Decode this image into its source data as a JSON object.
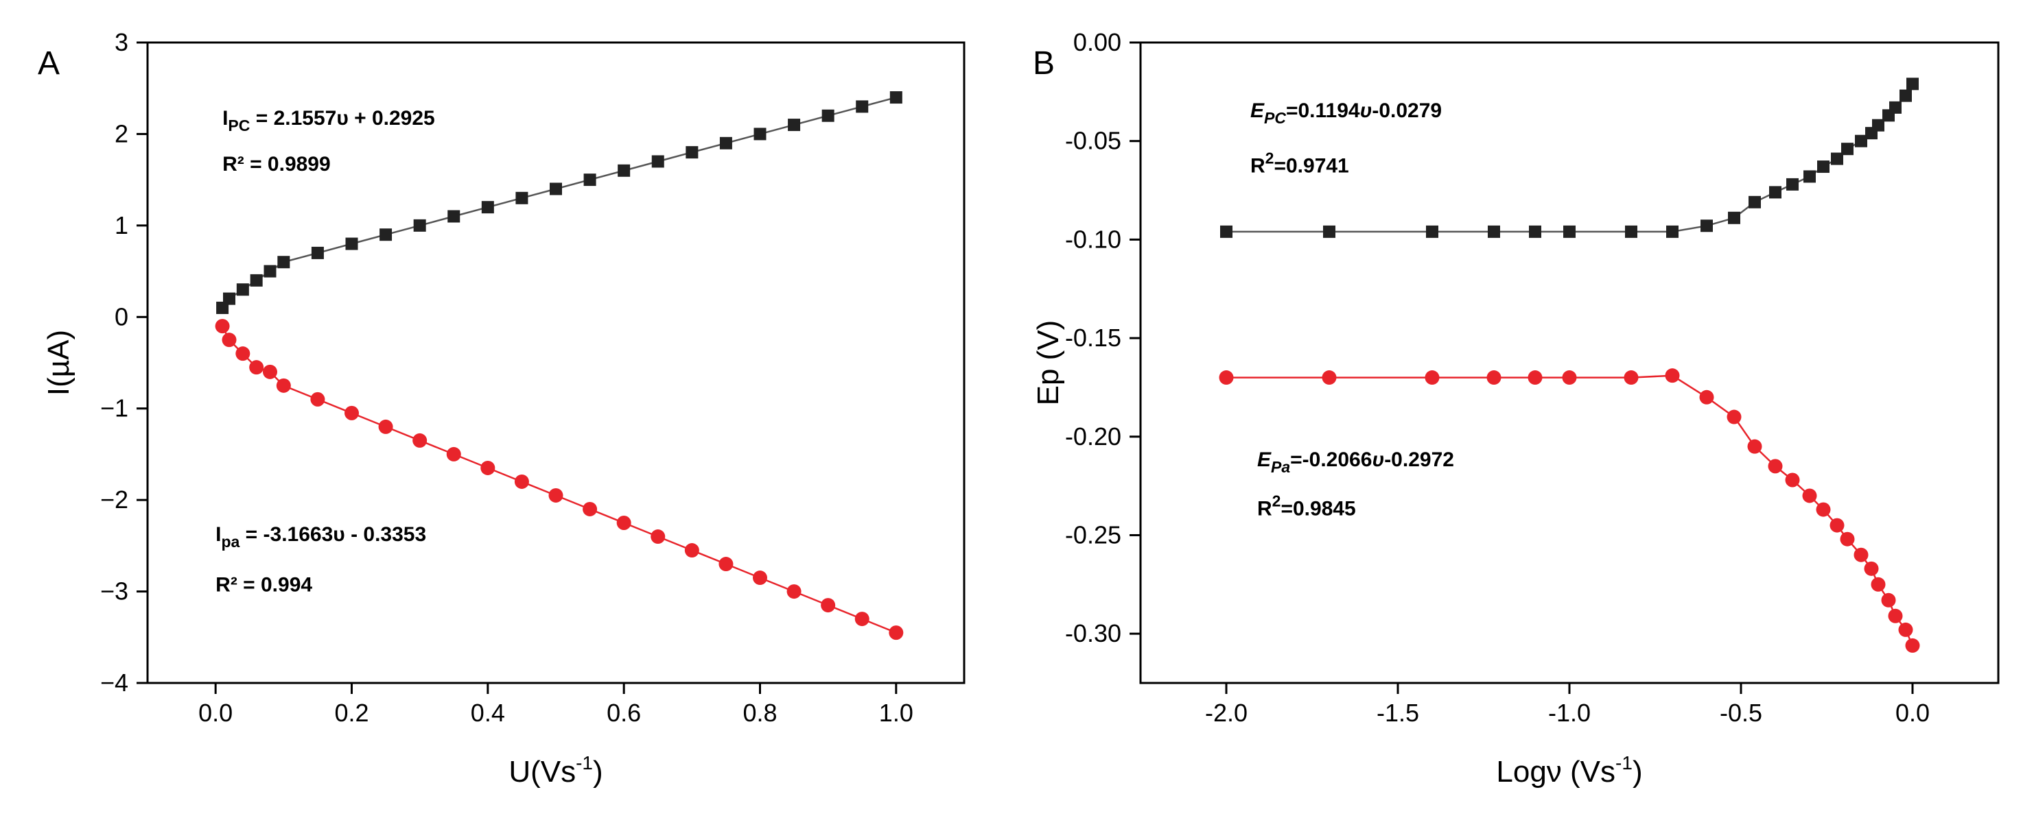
{
  "chart_data": [
    {
      "type": "scatter",
      "panel_label": "A",
      "title": "",
      "xlabel": {
        "main": "U(Vs",
        "sup": "-1",
        "end": ")"
      },
      "ylabel": "I(µA)",
      "xlim": [
        -0.1,
        1.1
      ],
      "ylim": [
        -4,
        3
      ],
      "xticks": [
        0.0,
        0.2,
        0.4,
        0.6,
        0.8,
        1.0
      ],
      "xtick_labels": [
        "0.0",
        "0.2",
        "0.4",
        "0.6",
        "0.8",
        "1.0"
      ],
      "yticks": [
        3,
        2,
        1,
        0,
        -1,
        -2,
        -3,
        -4
      ],
      "ytick_labels": [
        "3",
        "2",
        "1",
        "0",
        "−1",
        "−2",
        "−3",
        "−4"
      ],
      "grid": false,
      "series": [
        {
          "name": "Ipc",
          "marker": "square",
          "color": "#222222",
          "line_color": "#555555",
          "x": [
            0.01,
            0.02,
            0.04,
            0.06,
            0.08,
            0.1,
            0.15,
            0.2,
            0.25,
            0.3,
            0.35,
            0.4,
            0.45,
            0.5,
            0.55,
            0.6,
            0.65,
            0.7,
            0.75,
            0.8,
            0.85,
            0.9,
            0.95,
            1.0
          ],
          "y": [
            0.1,
            0.2,
            0.3,
            0.4,
            0.5,
            0.6,
            0.7,
            0.8,
            0.9,
            1.0,
            1.1,
            1.2,
            1.3,
            1.4,
            1.5,
            1.6,
            1.7,
            1.8,
            1.9,
            2.0,
            2.1,
            2.2,
            2.3,
            2.4
          ]
        },
        {
          "name": "Ipa",
          "marker": "circle",
          "color": "#e8242b",
          "line_color": "#e8242b",
          "x": [
            0.01,
            0.02,
            0.04,
            0.06,
            0.08,
            0.1,
            0.15,
            0.2,
            0.25,
            0.3,
            0.35,
            0.4,
            0.45,
            0.5,
            0.55,
            0.6,
            0.65,
            0.7,
            0.75,
            0.8,
            0.85,
            0.9,
            0.95,
            1.0
          ],
          "y": [
            -0.1,
            -0.25,
            -0.4,
            -0.55,
            -0.6,
            -0.75,
            -0.9,
            -1.05,
            -1.2,
            -1.35,
            -1.5,
            -1.65,
            -1.8,
            -1.95,
            -2.1,
            -2.25,
            -2.4,
            -2.55,
            -2.7,
            -2.85,
            -3.0,
            -3.15,
            -3.3,
            -3.45
          ]
        }
      ],
      "annotations": [
        {
          "name": "ipc-equation",
          "parts": [
            [
              "I",
              "n"
            ],
            [
              "PC",
              "sub"
            ],
            [
              " = 2.1557υ + 0.2925",
              "n"
            ]
          ],
          "at": [
            0.01,
            2.1
          ]
        },
        {
          "name": "ipc-r2",
          "parts": [
            [
              "R² = 0.9899",
              "n"
            ]
          ],
          "at": [
            0.01,
            1.6
          ]
        },
        {
          "name": "ipa-equation",
          "parts": [
            [
              "I",
              "n"
            ],
            [
              "pa",
              "sub"
            ],
            [
              "  = -3.1663υ - 0.3353",
              "n"
            ]
          ],
          "at": [
            0.0,
            -2.45
          ]
        },
        {
          "name": "ipa-r2",
          "parts": [
            [
              "R² = 0.994",
              "n"
            ]
          ],
          "at": [
            0.0,
            -3.0
          ]
        }
      ]
    },
    {
      "type": "scatter",
      "panel_label": "B",
      "title": "",
      "xlabel": {
        "main": "Logν (Vs",
        "sup": "-1",
        "end": ")"
      },
      "ylabel": "Ep (V)",
      "xlim": [
        -2.25,
        0.25
      ],
      "ylim": [
        -0.325,
        0.0
      ],
      "xticks": [
        -2.0,
        -1.5,
        -1.0,
        -0.5,
        0.0
      ],
      "xtick_labels": [
        "-2.0",
        "-1.5",
        "-1.0",
        "-0.5",
        "0.0"
      ],
      "yticks": [
        0.0,
        -0.05,
        -0.1,
        -0.15,
        -0.2,
        -0.25,
        -0.3
      ],
      "ytick_labels": [
        "0.00",
        "-0.05",
        "-0.10",
        "-0.15",
        "-0.20",
        "-0.25",
        "-0.30"
      ],
      "grid": false,
      "series": [
        {
          "name": "Epc",
          "marker": "square",
          "color": "#222222",
          "line_color": "#555555",
          "x": [
            -2.0,
            -1.7,
            -1.4,
            -1.22,
            -1.1,
            -1.0,
            -0.82,
            -0.7,
            -0.6,
            -0.52,
            -0.46,
            -0.4,
            -0.35,
            -0.3,
            -0.26,
            -0.22,
            -0.19,
            -0.15,
            -0.12,
            -0.1,
            -0.07,
            -0.05,
            -0.02,
            0.0
          ],
          "y": [
            -0.096,
            -0.096,
            -0.096,
            -0.096,
            -0.096,
            -0.096,
            -0.096,
            -0.096,
            -0.093,
            -0.089,
            -0.081,
            -0.076,
            -0.072,
            -0.068,
            -0.063,
            -0.059,
            -0.054,
            -0.05,
            -0.046,
            -0.042,
            -0.037,
            -0.033,
            -0.027,
            -0.021
          ]
        },
        {
          "name": "Epa",
          "marker": "circle",
          "color": "#e8242b",
          "line_color": "#e8242b",
          "x": [
            -2.0,
            -1.7,
            -1.4,
            -1.22,
            -1.1,
            -1.0,
            -0.82,
            -0.7,
            -0.6,
            -0.52,
            -0.46,
            -0.4,
            -0.35,
            -0.3,
            -0.26,
            -0.22,
            -0.19,
            -0.15,
            -0.12,
            -0.1,
            -0.07,
            -0.05,
            -0.02,
            0.0
          ],
          "y": [
            -0.17,
            -0.17,
            -0.17,
            -0.17,
            -0.17,
            -0.17,
            -0.17,
            -0.169,
            -0.18,
            -0.19,
            -0.205,
            -0.215,
            -0.222,
            -0.23,
            -0.237,
            -0.245,
            -0.252,
            -0.26,
            -0.267,
            -0.275,
            -0.283,
            -0.291,
            -0.298,
            -0.306
          ]
        }
      ],
      "annotations": [
        {
          "name": "epc-equation",
          "parts": [
            [
              "E",
              "i"
            ],
            [
              "PC",
              "isub"
            ],
            [
              "=0.1194",
              "n"
            ],
            [
              "υ",
              "i"
            ],
            [
              "-0.0279",
              "n"
            ]
          ],
          "at": [
            -1.93,
            -0.038
          ]
        },
        {
          "name": "epc-r2",
          "parts": [
            [
              "R",
              "n"
            ],
            [
              "2",
              "sup"
            ],
            [
              "=0.9741",
              "n"
            ]
          ],
          "at": [
            -1.93,
            -0.066
          ]
        },
        {
          "name": "epa-equation",
          "parts": [
            [
              "E",
              "i"
            ],
            [
              "Pa",
              "isub"
            ],
            [
              "=-0.2066",
              "n"
            ],
            [
              "υ",
              "i"
            ],
            [
              "-0.2972",
              "n"
            ]
          ],
          "at": [
            -1.91,
            -0.215
          ]
        },
        {
          "name": "epa-r2",
          "parts": [
            [
              "R",
              "n"
            ],
            [
              "2",
              "sup"
            ],
            [
              "=0.9845",
              "n"
            ]
          ],
          "at": [
            -1.91,
            -0.24
          ]
        }
      ]
    }
  ]
}
